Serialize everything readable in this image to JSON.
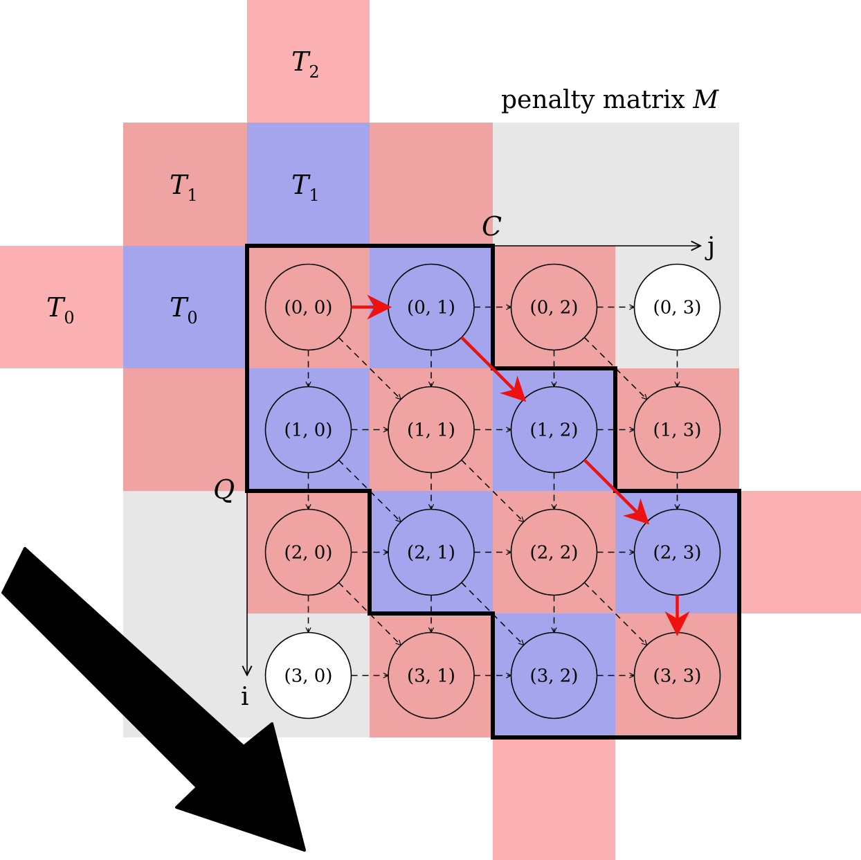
{
  "caption": {
    "text": "penalty matrix",
    "symbol": "M"
  },
  "axes": {
    "query": "Q",
    "candidate": "C",
    "row_index": "i",
    "col_index": "j"
  },
  "tiles": {
    "t0": {
      "base": "T",
      "sub": "0"
    },
    "t1": {
      "base": "T",
      "sub": "1"
    },
    "t2": {
      "base": "T",
      "sub": "2"
    }
  },
  "nodes": [
    [
      "(0, 0)",
      "(0, 1)",
      "(0, 2)",
      "(0, 3)"
    ],
    [
      "(1, 0)",
      "(1, 1)",
      "(1, 2)",
      "(1, 3)"
    ],
    [
      "(2, 0)",
      "(2, 1)",
      "(2, 2)",
      "(2, 3)"
    ],
    [
      "(3, 0)",
      "(3, 1)",
      "(3, 2)",
      "(3, 3)"
    ]
  ],
  "cell_states": [
    [
      "red",
      "blue",
      "red",
      "none"
    ],
    [
      "blue",
      "red",
      "blue",
      "red"
    ],
    [
      "red",
      "blue",
      "red",
      "blue"
    ],
    [
      "none",
      "red",
      "blue",
      "red"
    ]
  ],
  "path": [
    [
      0,
      0
    ],
    [
      0,
      1
    ],
    [
      1,
      2
    ],
    [
      2,
      3
    ],
    [
      3,
      3
    ]
  ],
  "colors": {
    "red_cell": "#efa3a3",
    "blue_cell": "#a5a5ee",
    "pink_tile": "#fbb1b1",
    "gray_bg": "#e7e7e7",
    "path": "#ee1111",
    "arrow": "#000000"
  }
}
